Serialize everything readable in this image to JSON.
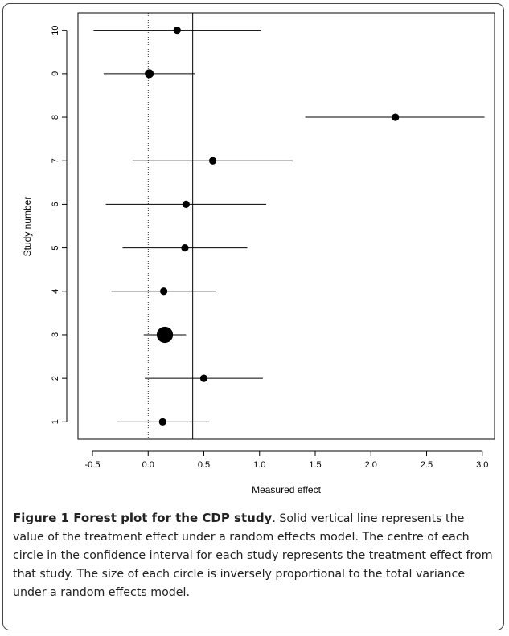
{
  "chart_data": {
    "type": "scatter",
    "subtype": "forest-plot",
    "xlabel": "Measured effect",
    "ylabel": "Study number",
    "xlim": [
      -0.63,
      3.11
    ],
    "ylim": [
      0.6,
      10.4
    ],
    "x_ticks": [
      "-0.5",
      "0.0",
      "0.5",
      "1.0",
      "1.5",
      "2.0",
      "2.5",
      "3.0"
    ],
    "x_tick_values": [
      -0.5,
      0.0,
      0.5,
      1.0,
      1.5,
      2.0,
      2.5,
      3.0
    ],
    "y_ticks": [
      "1",
      "2",
      "3",
      "4",
      "5",
      "6",
      "7",
      "8",
      "9",
      "10"
    ],
    "y_tick_values": [
      1,
      2,
      3,
      4,
      5,
      6,
      7,
      8,
      9,
      10
    ],
    "reference_line_dotted": 0.0,
    "reference_line_solid": 0.4,
    "studies": [
      {
        "study": 1,
        "effect": 0.13,
        "lower": -0.28,
        "upper": 0.55,
        "marker_size": 1.0
      },
      {
        "study": 2,
        "effect": 0.5,
        "lower": -0.03,
        "upper": 1.03,
        "marker_size": 1.0
      },
      {
        "study": 3,
        "effect": 0.15,
        "lower": -0.04,
        "upper": 0.34,
        "marker_size": 2.2
      },
      {
        "study": 4,
        "effect": 0.14,
        "lower": -0.33,
        "upper": 0.61,
        "marker_size": 1.0
      },
      {
        "study": 5,
        "effect": 0.33,
        "lower": -0.23,
        "upper": 0.89,
        "marker_size": 1.0
      },
      {
        "study": 6,
        "effect": 0.34,
        "lower": -0.38,
        "upper": 1.06,
        "marker_size": 1.0
      },
      {
        "study": 7,
        "effect": 0.58,
        "lower": -0.14,
        "upper": 1.3,
        "marker_size": 1.0
      },
      {
        "study": 8,
        "effect": 2.22,
        "lower": 1.41,
        "upper": 3.02,
        "marker_size": 1.0
      },
      {
        "study": 9,
        "effect": 0.01,
        "lower": -0.4,
        "upper": 0.42,
        "marker_size": 1.2
      },
      {
        "study": 10,
        "effect": 0.26,
        "lower": -0.49,
        "upper": 1.01,
        "marker_size": 1.0
      }
    ]
  },
  "caption": {
    "title": "Figure 1 Forest plot for the CDP study",
    "text": ". Solid vertical line represents the value of the treatment effect under a random effects model. The centre of each circle in the confidence interval for each study represents the treatment effect from that study. The size of each circle is inversely proportional to the total variance under a random effects model."
  },
  "colors": {
    "ink": "#000000",
    "frame": "#444444",
    "caption_text": "#222222"
  }
}
